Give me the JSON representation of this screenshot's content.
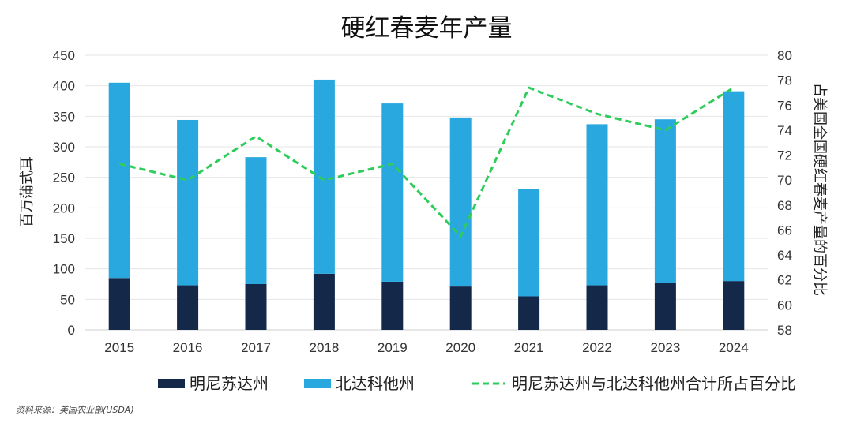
{
  "chart_data": {
    "type": "bar",
    "title": "硬红春麦年产量",
    "categories": [
      "2015",
      "2016",
      "2017",
      "2018",
      "2019",
      "2020",
      "2021",
      "2022",
      "2023",
      "2024"
    ],
    "stacked": true,
    "series": [
      {
        "name": "明尼苏达州",
        "type": "bar",
        "axis": "left",
        "color": "#14294a",
        "values": [
          85,
          73,
          75,
          92,
          79,
          71,
          55,
          73,
          77,
          80
        ]
      },
      {
        "name": "北达科他州",
        "type": "bar",
        "axis": "left",
        "color": "#29a8df",
        "values": [
          320,
          271,
          208,
          318,
          292,
          277,
          176,
          264,
          268,
          311
        ]
      },
      {
        "name": "明尼苏达州与北达科他州合计所占百分比",
        "type": "line",
        "axis": "right",
        "color": "#2ecc5a",
        "style": "dashed",
        "values": [
          71.3,
          70.0,
          73.5,
          70.0,
          71.3,
          65.5,
          77.4,
          75.3,
          74.0,
          77.4
        ]
      }
    ],
    "ylabel": "百万蒲式耳",
    "ylim": [
      0,
      450
    ],
    "yticks": [
      0,
      50,
      100,
      150,
      200,
      250,
      300,
      350,
      400,
      450
    ],
    "y2label": "占美国全国硬红春麦产量的百分比",
    "y2lim": [
      58,
      80
    ],
    "y2ticks": [
      58,
      60,
      62,
      64,
      66,
      68,
      70,
      72,
      74,
      76,
      78,
      80
    ],
    "grid": true,
    "legend_position": "bottom"
  },
  "source": "资料来源：美国农业部(USDA)"
}
